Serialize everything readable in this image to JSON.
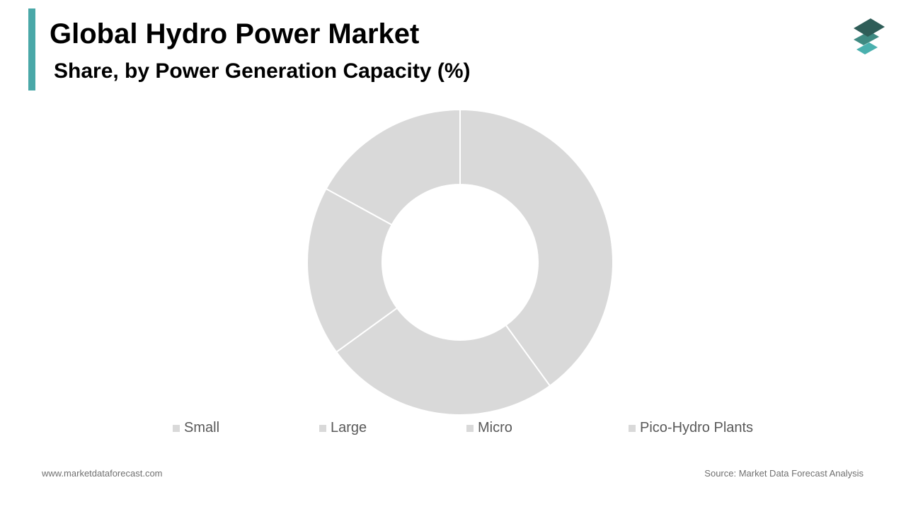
{
  "header": {
    "title": "Global Hydro Power Market",
    "subtitle": "Share, by Power Generation Capacity (%)"
  },
  "colors": {
    "accent": "#4aa8a8",
    "slice": "#d9d9d9",
    "slice_border": "#ffffff",
    "logo_top": "#2f5d58",
    "logo_mid": "#3f8a82",
    "logo_bottom": "#4ab0ae"
  },
  "logo": {
    "icon": "stacked-layers-icon"
  },
  "chart_data": {
    "type": "pie",
    "style": "donut",
    "categories": [
      "Small",
      "Large",
      "Micro",
      "Pico-Hydro Plants"
    ],
    "values": [
      40,
      25,
      18,
      17
    ],
    "unit": "%",
    "legend_position": "bottom"
  },
  "footer": {
    "website": "www.marketdataforecast.com",
    "source": "Source: Market Data Forecast Analysis"
  }
}
